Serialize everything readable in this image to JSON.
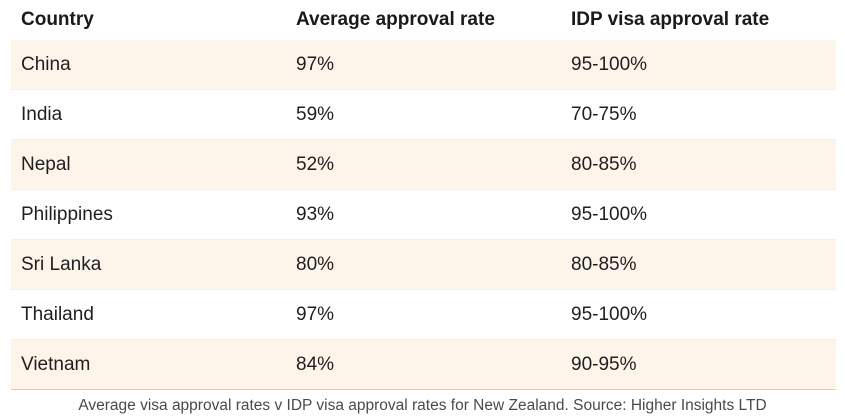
{
  "table": {
    "headers": [
      "Country",
      "Average approval rate",
      "IDP visa approval rate"
    ],
    "rows": [
      [
        "China",
        "97%",
        "95-100%"
      ],
      [
        "India",
        "59%",
        "70-75%"
      ],
      [
        "Nepal",
        "52%",
        "80-85%"
      ],
      [
        "Philippines",
        "93%",
        "95-100%"
      ],
      [
        "Sri Lanka",
        "80%",
        "80-85%"
      ],
      [
        "Thailand",
        "97%",
        "95-100%"
      ],
      [
        "Vietnam",
        "84%",
        "90-95%"
      ]
    ]
  },
  "caption": "Average visa approval rates v IDP visa approval rates for New Zealand. Source: Higher Insights LTD",
  "colors": {
    "row_shade": "#fdf4ea",
    "bottom_rule": "#e9c9a6"
  }
}
